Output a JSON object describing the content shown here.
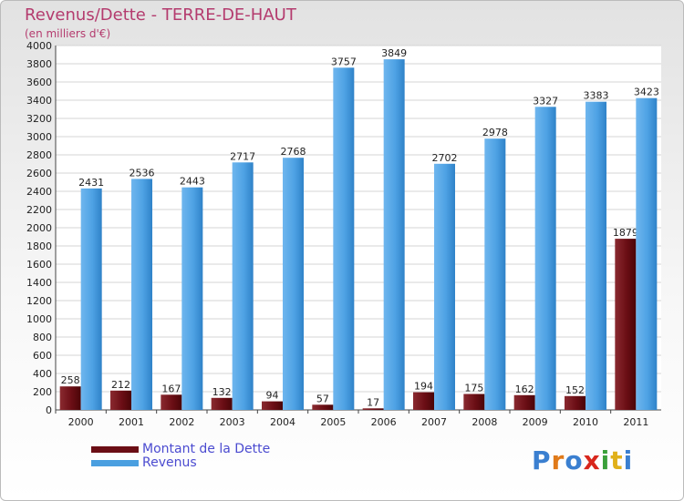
{
  "header": {
    "title": "Revenus/Dette - TERRE-DE-HAUT",
    "subtitle": "(en milliers d'€)"
  },
  "chart_data": {
    "type": "bar",
    "title": "Revenus/Dette - TERRE-DE-HAUT",
    "ylabel": "(en milliers d'€)",
    "ylim": [
      0,
      4000
    ],
    "ytick_step": 200,
    "grid": true,
    "categories": [
      "2000",
      "2001",
      "2002",
      "2003",
      "2004",
      "2005",
      "2006",
      "2007",
      "2008",
      "2009",
      "2010",
      "2011"
    ],
    "series": [
      {
        "name": "Montant de la Dette",
        "color": "#6b0e15",
        "values": [
          258,
          212,
          167,
          132,
          94,
          57,
          17,
          194,
          175,
          162,
          152,
          1879
        ]
      },
      {
        "name": "Revenus",
        "color": "#4a9fe0",
        "values": [
          2431,
          2536,
          2443,
          2717,
          2768,
          3757,
          3849,
          2702,
          2978,
          3327,
          3383,
          3423
        ]
      }
    ]
  },
  "legend": {
    "items": [
      {
        "label": "Montant de la Dette",
        "color": "#6b0e15"
      },
      {
        "label": "Revenus",
        "color": "#4a9fe0"
      }
    ]
  },
  "brand": {
    "letters": [
      "P",
      "r",
      "o",
      "x",
      "i",
      "t",
      "i"
    ],
    "colors": [
      "#3a7fd0",
      "#e07a1a",
      "#3a7fd0",
      "#d8261c",
      "#3aa03a",
      "#e0b01a",
      "#3a7fd0"
    ]
  }
}
